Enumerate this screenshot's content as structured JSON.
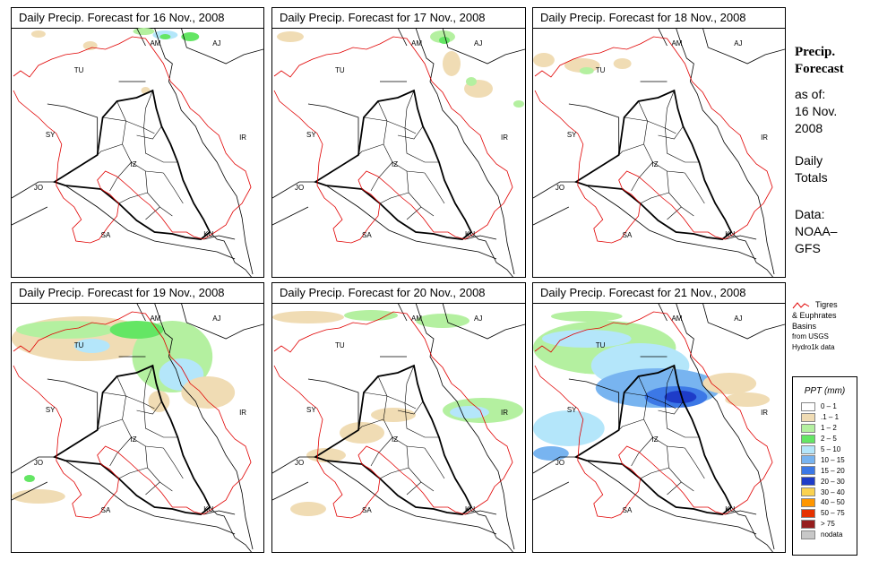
{
  "panels": [
    {
      "title": "Daily Precip. Forecast for  16 Nov., 2008",
      "precip_level": "low"
    },
    {
      "title": "Daily Precip. Forecast for  17 Nov., 2008",
      "precip_level": "low"
    },
    {
      "title": "Daily Precip. Forecast for  18 Nov., 2008",
      "precip_level": "low"
    },
    {
      "title": "Daily Precip. Forecast for  19 Nov., 2008",
      "precip_level": "moderate"
    },
    {
      "title": "Daily Precip. Forecast for  20 Nov., 2008",
      "precip_level": "moderate"
    },
    {
      "title": "Daily Precip. Forecast for  21 Nov., 2008",
      "precip_level": "high"
    }
  ],
  "country_labels": [
    "AM",
    "AJ",
    "TU",
    "SY",
    "IR",
    "IZ",
    "JO",
    "SA",
    "KU"
  ],
  "sidebar": {
    "title_line1": "Precip.",
    "title_line2": "Forecast",
    "asof_line1": "as of:",
    "asof_line2": "16 Nov.",
    "asof_line3": "2008",
    "daily_line1": "Daily",
    "daily_line2": "Totals",
    "data_line1": "Data:",
    "data_line2": "NOAA–",
    "data_line3": "GFS"
  },
  "basin_legend": {
    "line1": "Tigres",
    "line2": "& Euphrates",
    "line3": "Basins",
    "line4": "from USGS",
    "line5": "Hydro1k data",
    "color": "#e00000"
  },
  "ppt_legend": {
    "title": "PPT (mm)",
    "items": [
      {
        "label": "0 – 1",
        "color": "#ffffff"
      },
      {
        "label": ".1 – 1",
        "color": "#f0dcb4"
      },
      {
        "label": "1 – 2",
        "color": "#b4f0a0"
      },
      {
        "label": "2 – 5",
        "color": "#64e664"
      },
      {
        "label": "5 – 10",
        "color": "#b4e6fa"
      },
      {
        "label": "10 – 15",
        "color": "#78b4f0"
      },
      {
        "label": "15 – 20",
        "color": "#3c78e6"
      },
      {
        "label": "20 – 30",
        "color": "#1e3cc8"
      },
      {
        "label": "30 – 40",
        "color": "#fad250"
      },
      {
        "label": "40 – 50",
        "color": "#ff9600"
      },
      {
        "label": "50 – 75",
        "color": "#e63200"
      },
      {
        "label": "> 75",
        "color": "#961e1e"
      },
      {
        "label": "nodata",
        "color": "#c8c8c8"
      }
    ]
  }
}
